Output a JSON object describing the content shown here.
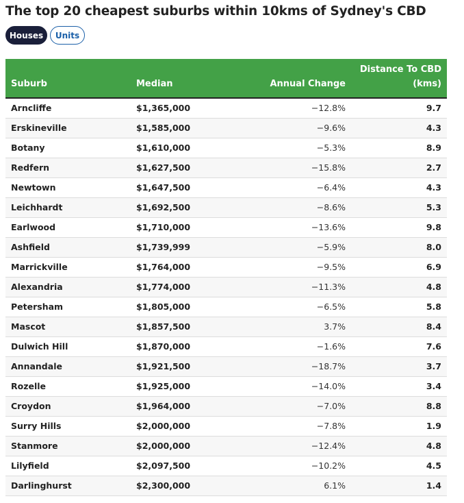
{
  "title": "The top 20 cheapest suburbs within 10kms of Sydney's CBD",
  "toggle": {
    "houses": "Houses",
    "units": "Units"
  },
  "table": {
    "headers": {
      "suburb": "Suburb",
      "median": "Median",
      "change": "Annual Change",
      "distance_line1": "Distance To CBD",
      "distance_line2": "(kms)"
    },
    "rows": [
      {
        "suburb": "Arncliffe",
        "median": "$1,365,000",
        "change": "−12.8%",
        "distance": "9.7"
      },
      {
        "suburb": "Erskineville",
        "median": "$1,585,000",
        "change": "−9.6%",
        "distance": "4.3"
      },
      {
        "suburb": "Botany",
        "median": "$1,610,000",
        "change": "−5.3%",
        "distance": "8.9"
      },
      {
        "suburb": "Redfern",
        "median": "$1,627,500",
        "change": "−15.8%",
        "distance": "2.7"
      },
      {
        "suburb": "Newtown",
        "median": "$1,647,500",
        "change": "−6.4%",
        "distance": "4.3"
      },
      {
        "suburb": "Leichhardt",
        "median": "$1,692,500",
        "change": "−8.6%",
        "distance": "5.3"
      },
      {
        "suburb": "Earlwood",
        "median": "$1,710,000",
        "change": "−13.6%",
        "distance": "9.8"
      },
      {
        "suburb": "Ashfield",
        "median": "$1,739,999",
        "change": "−5.9%",
        "distance": "8.0"
      },
      {
        "suburb": "Marrickville",
        "median": "$1,764,000",
        "change": "−9.5%",
        "distance": "6.9"
      },
      {
        "suburb": "Alexandria",
        "median": "$1,774,000",
        "change": "−11.3%",
        "distance": "4.8"
      },
      {
        "suburb": "Petersham",
        "median": "$1,805,000",
        "change": "−6.5%",
        "distance": "5.8"
      },
      {
        "suburb": "Mascot",
        "median": "$1,857,500",
        "change": "3.7%",
        "distance": "8.4"
      },
      {
        "suburb": "Dulwich Hill",
        "median": "$1,870,000",
        "change": "−1.6%",
        "distance": "7.6"
      },
      {
        "suburb": "Annandale",
        "median": "$1,921,500",
        "change": "−18.7%",
        "distance": "3.7"
      },
      {
        "suburb": "Rozelle",
        "median": "$1,925,000",
        "change": "−14.0%",
        "distance": "3.4"
      },
      {
        "suburb": "Croydon",
        "median": "$1,964,000",
        "change": "−7.0%",
        "distance": "8.8"
      },
      {
        "suburb": "Surry Hills",
        "median": "$2,000,000",
        "change": "−7.8%",
        "distance": "1.9"
      },
      {
        "suburb": "Stanmore",
        "median": "$2,000,000",
        "change": "−12.4%",
        "distance": "4.8"
      },
      {
        "suburb": "Lilyfield",
        "median": "$2,097,500",
        "change": "−10.2%",
        "distance": "4.5"
      },
      {
        "suburb": "Darlinghurst",
        "median": "$2,300,000",
        "change": "6.1%",
        "distance": "1.4"
      }
    ]
  },
  "colors": {
    "header_bg": "#43a147",
    "active_pill": "#1a1f3a",
    "inactive_pill": "#1a5fa8"
  }
}
